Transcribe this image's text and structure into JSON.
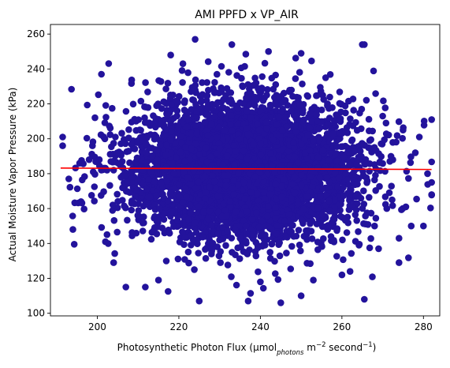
{
  "chart_data": {
    "type": "scatter",
    "title": "AMI PPFD x VP_AIR",
    "xlabel": {
      "prefix": "Photosynthetic Photon Flux (μmol",
      "subscript": "photons",
      "middle": " m",
      "exp1": "−2",
      "after": " second",
      "exp2": "−1",
      "suffix": ")"
    },
    "ylabel": "Actual Moisture Vapor Pressure (kPa)",
    "xlim": [
      188.5,
      284.0
    ],
    "ylim": [
      98.5,
      265.5
    ],
    "xticks": [
      200,
      220,
      240,
      260,
      280
    ],
    "yticks": [
      100,
      120,
      140,
      160,
      180,
      200,
      220,
      240,
      260
    ],
    "grid": false,
    "legend": "none",
    "colors": {
      "points": "#23139c",
      "fit_line": "#ff0000"
    },
    "distribution": {
      "n": 5000,
      "x_mean": 236.5,
      "x_std": 14.0,
      "y_mean": 182.5,
      "y_std": 20.0
    },
    "outliers": [
      {
        "x": 191.5,
        "y": 201
      },
      {
        "x": 191.5,
        "y": 196
      },
      {
        "x": 193,
        "y": 177
      },
      {
        "x": 194,
        "y": 148
      },
      {
        "x": 196,
        "y": 164
      },
      {
        "x": 198,
        "y": 188
      },
      {
        "x": 199,
        "y": 181
      },
      {
        "x": 201,
        "y": 237
      },
      {
        "x": 202,
        "y": 141
      },
      {
        "x": 204,
        "y": 129
      },
      {
        "x": 204,
        "y": 182
      },
      {
        "x": 207,
        "y": 115
      },
      {
        "x": 215,
        "y": 119
      },
      {
        "x": 218,
        "y": 248
      },
      {
        "x": 221,
        "y": 243
      },
      {
        "x": 224,
        "y": 257
      },
      {
        "x": 225,
        "y": 107
      },
      {
        "x": 228,
        "y": 134
      },
      {
        "x": 233,
        "y": 254
      },
      {
        "x": 237,
        "y": 107
      },
      {
        "x": 240,
        "y": 118
      },
      {
        "x": 242,
        "y": 250
      },
      {
        "x": 250,
        "y": 249
      },
      {
        "x": 250,
        "y": 110
      },
      {
        "x": 253,
        "y": 119
      },
      {
        "x": 256,
        "y": 235
      },
      {
        "x": 260,
        "y": 122
      },
      {
        "x": 262,
        "y": 124
      },
      {
        "x": 265,
        "y": 254
      },
      {
        "x": 265.5,
        "y": 254
      },
      {
        "x": 265.5,
        "y": 108
      },
      {
        "x": 270,
        "y": 213
      },
      {
        "x": 271,
        "y": 160
      },
      {
        "x": 274,
        "y": 129
      },
      {
        "x": 275,
        "y": 205
      },
      {
        "x": 277,
        "y": 150
      },
      {
        "x": 278,
        "y": 192
      },
      {
        "x": 279,
        "y": 201
      },
      {
        "x": 280,
        "y": 150
      },
      {
        "x": 281,
        "y": 180
      },
      {
        "x": 282,
        "y": 211
      },
      {
        "x": 282,
        "y": 175
      },
      {
        "x": 282,
        "y": 168
      },
      {
        "x": 274,
        "y": 143
      },
      {
        "x": 269,
        "y": 137
      }
    ],
    "fit_line": {
      "x": [
        191,
        282
      ],
      "y": [
        183.2,
        182.4
      ]
    }
  }
}
